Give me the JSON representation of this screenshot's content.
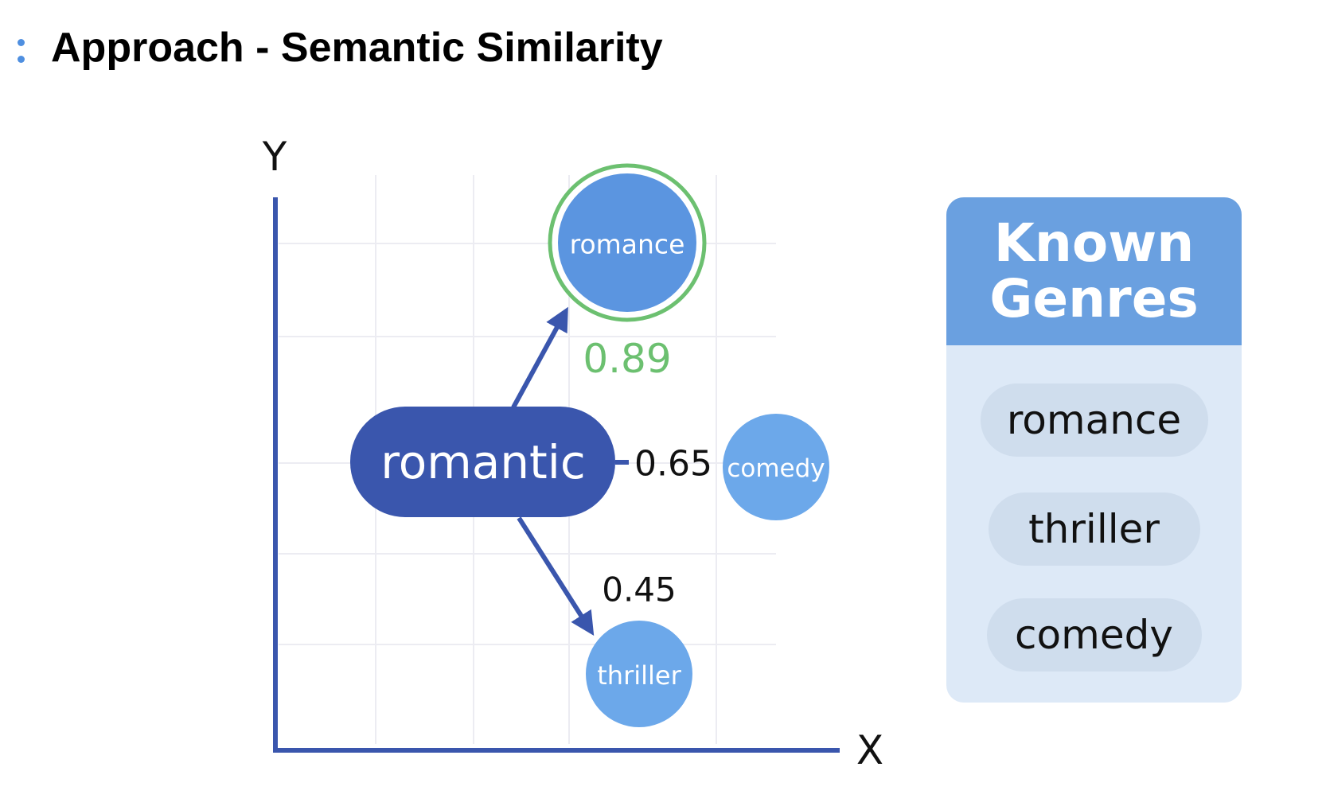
{
  "title": "Approach - Semantic Similarity",
  "diagram": {
    "axes": {
      "x_label": "X",
      "y_label": "Y"
    },
    "query": {
      "label": "romantic",
      "color": "#3a56ad"
    },
    "candidates": [
      {
        "id": "romance",
        "label": "romance",
        "score": "0.89",
        "best_match": true,
        "color": "#5b95e0",
        "score_color": "#6cc070"
      },
      {
        "id": "comedy",
        "label": "comedy",
        "score": "0.65",
        "best_match": false,
        "color": "#6ca8ea",
        "score_color": "#111111"
      },
      {
        "id": "thriller",
        "label": "thriller",
        "score": "0.45",
        "best_match": false,
        "color": "#6ca8ea",
        "score_color": "#111111"
      }
    ],
    "colors": {
      "axis": "#3a56ad",
      "highlight_ring": "#6cc070",
      "grid": "#ececf2"
    }
  },
  "known_genres": {
    "title": "Known Genres",
    "items": [
      "romance",
      "thriller",
      "comedy"
    ]
  }
}
